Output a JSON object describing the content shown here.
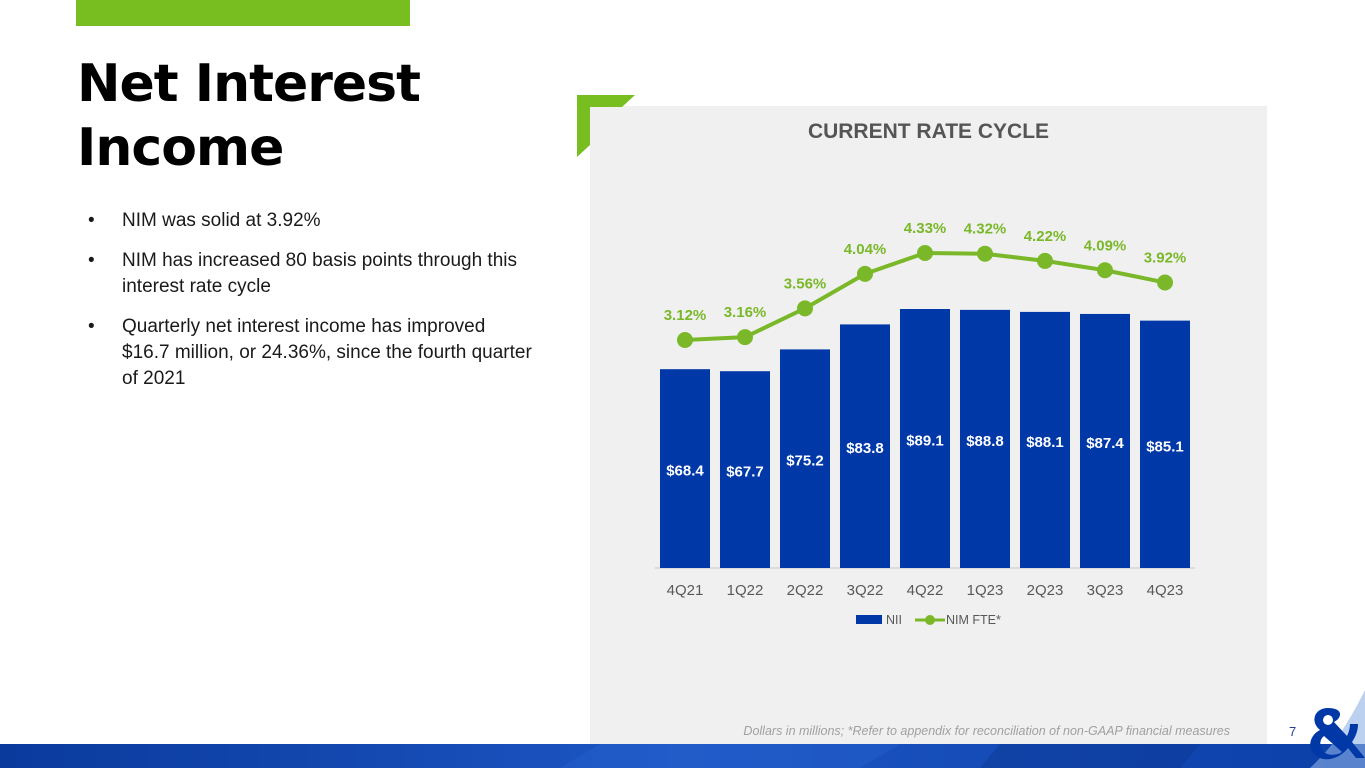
{
  "slide": {
    "title_line1": "Net Interest",
    "title_line2": "Income",
    "bullets": [
      "NIM was solid at 3.92%",
      "NIM has increased 80 basis points through this interest rate cycle",
      "Quarterly net interest income has improved $16.7 million, or 24.36%, since the fourth quarter of 2021"
    ],
    "footnote": "Dollars in millions; *Refer to appendix for reconciliation of non-GAAP financial measures",
    "page_number": "7"
  },
  "colors": {
    "accent_green": "#78be20",
    "bar_blue": "#0038a8",
    "line_green": "#7ab829",
    "panel_bg": "#f0f0f0"
  },
  "chart_data": {
    "type": "bar",
    "title": "CURRENT RATE CYCLE",
    "categories": [
      "4Q21",
      "1Q22",
      "2Q22",
      "3Q22",
      "4Q22",
      "1Q23",
      "2Q23",
      "3Q23",
      "4Q23"
    ],
    "series": [
      {
        "name": "NII",
        "kind": "bar",
        "values": [
          68.4,
          67.7,
          75.2,
          83.8,
          89.1,
          88.8,
          88.1,
          87.4,
          85.1
        ],
        "labels": [
          "$68.4",
          "$67.7",
          "$75.2",
          "$83.8",
          "$89.1",
          "$88.8",
          "$88.1",
          "$87.4",
          "$85.1"
        ]
      },
      {
        "name": "NIM FTE*",
        "kind": "line",
        "values": [
          3.12,
          3.16,
          3.56,
          4.04,
          4.33,
          4.32,
          4.22,
          4.09,
          3.92
        ],
        "labels": [
          "3.12%",
          "3.16%",
          "3.56%",
          "4.04%",
          "4.33%",
          "4.32%",
          "4.22%",
          "4.09%",
          "3.92%"
        ]
      }
    ],
    "xlabel": "",
    "ylabel": "",
    "bar_ylim": [
      0,
      89.1
    ],
    "line_ylim": [
      3.12,
      4.33
    ],
    "legend": "bottom-center",
    "grid": false
  }
}
